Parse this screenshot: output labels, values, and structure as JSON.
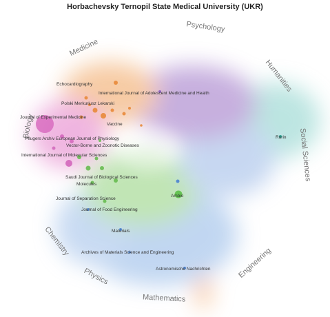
{
  "title": "Horbachevsky Ternopil State Medical University (UKR)",
  "disciplines": [
    {
      "label": "Psychology"
    },
    {
      "label": "Medicine"
    },
    {
      "label": "Humanities"
    },
    {
      "label": "Biology"
    },
    {
      "label": "Social Sciences"
    },
    {
      "label": "Chemistry"
    },
    {
      "label": "Physics"
    },
    {
      "label": "Mathematics"
    },
    {
      "label": "Engineering"
    }
  ],
  "journals": [
    {
      "label": "Echocardiography"
    },
    {
      "label": "International Journal of Adolescent Medicine and Health"
    },
    {
      "label": "Polski Merkuriusz Lekarski"
    },
    {
      "label": "Journal of Experimental Medicine"
    },
    {
      "label": "Vaccine"
    },
    {
      "label": "Pflugers Archiv European Journal of Physiology"
    },
    {
      "label": "Vector-Borne and Zoonotic Diseases"
    },
    {
      "label": "International Journal of Molecular Sciences"
    },
    {
      "label": "Saudi Journal of Biological Sciences"
    },
    {
      "label": "Molecules"
    },
    {
      "label": "Journal of Separation Science"
    },
    {
      "label": "Journal of Food Engineering"
    },
    {
      "label": "Ambio"
    },
    {
      "label": "Materials"
    },
    {
      "label": "Archives of Materials Science and Engineering"
    },
    {
      "label": "Astronomische Nachrichten"
    },
    {
      "label": "Rurin"
    }
  ]
}
